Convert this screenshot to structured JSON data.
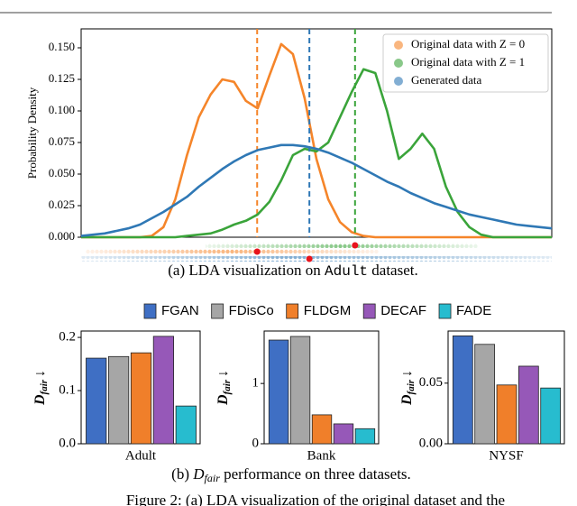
{
  "figure_caption": "Figure 2:  (a) LDA visualization of the original dataset and the",
  "bar_legend": {
    "labels": [
      "FGAN",
      "FDisCo",
      "FLDGM",
      "DECAF",
      "FADE"
    ],
    "colors": [
      "#3f6fc4",
      "#a6a6a6",
      "#f07f2a",
      "#9658b8",
      "#27bccf"
    ]
  },
  "chart_data": [
    {
      "type": "line",
      "caption": [
        "(a) LDA visualization on ",
        "Adult",
        " dataset."
      ],
      "ylabel": "Probability Density",
      "xlim": [
        0,
        100
      ],
      "ylim": [
        0,
        0.165
      ],
      "yticks": [
        {
          "value": 0,
          "label": "0.000"
        },
        {
          "value": 0.025,
          "label": "0.025"
        },
        {
          "value": 0.05,
          "label": "0.050"
        },
        {
          "value": 0.075,
          "label": "0.075"
        },
        {
          "value": 0.1,
          "label": "0.100"
        },
        {
          "value": 0.125,
          "label": "0.125"
        },
        {
          "value": 0.15,
          "label": "0.150"
        }
      ],
      "x": [
        0,
        2.5,
        5,
        7.5,
        10,
        12.5,
        15,
        17.5,
        20,
        22.5,
        25,
        27.5,
        30,
        32.5,
        35,
        37.5,
        40,
        42.5,
        45,
        47.5,
        50,
        52.5,
        55,
        57.5,
        60,
        62.5,
        65,
        67.5,
        70,
        72.5,
        75,
        77.5,
        80,
        82.5,
        85,
        87.5,
        90,
        92.5,
        95,
        97.5,
        100
      ],
      "series": [
        {
          "name": "Original data with Z = 0",
          "color": "#f5852a",
          "mean": 37.4,
          "values": [
            0,
            0,
            0,
            0,
            0,
            0,
            0.001,
            0.008,
            0.03,
            0.065,
            0.095,
            0.113,
            0.125,
            0.123,
            0.108,
            0.102,
            0.128,
            0.153,
            0.145,
            0.11,
            0.062,
            0.03,
            0.012,
            0.004,
            0.001,
            0,
            0,
            0,
            0,
            0,
            0,
            0,
            0,
            0,
            0,
            0,
            0,
            0,
            0,
            0,
            0
          ]
        },
        {
          "name": "Original data with Z = 1",
          "color": "#3aa43a",
          "mean": 58.2,
          "values": [
            0,
            0,
            0,
            0,
            0,
            0,
            0,
            0,
            0,
            0.001,
            0.002,
            0.003,
            0.006,
            0.01,
            0.013,
            0.018,
            0.028,
            0.045,
            0.065,
            0.07,
            0.068,
            0.075,
            0.095,
            0.115,
            0.133,
            0.13,
            0.1,
            0.062,
            0.07,
            0.082,
            0.07,
            0.04,
            0.02,
            0.008,
            0.002,
            0,
            0,
            0,
            0,
            0,
            0
          ]
        },
        {
          "name": "Generated data",
          "color": "#2f78b5",
          "mean": 48.5,
          "values": [
            0.001,
            0.002,
            0.003,
            0.005,
            0.007,
            0.01,
            0.015,
            0.02,
            0.026,
            0.032,
            0.04,
            0.047,
            0.054,
            0.06,
            0.065,
            0.069,
            0.071,
            0.073,
            0.073,
            0.072,
            0.07,
            0.067,
            0.063,
            0.059,
            0.054,
            0.049,
            0.044,
            0.04,
            0.035,
            0.031,
            0.027,
            0.024,
            0.021,
            0.018,
            0.016,
            0.014,
            0.012,
            0.01,
            0.009,
            0.008,
            0.007
          ]
        }
      ],
      "legend": "upper right"
    },
    {
      "type": "bar",
      "xlabel": "Adult",
      "ylabel": [
        "D",
        "fair",
        "↓"
      ],
      "values": [
        0.161,
        0.164,
        0.171,
        0.202,
        0.071
      ],
      "ylim": [
        0,
        0.212
      ],
      "yticks": [
        {
          "value": 0,
          "label": "0.0"
        },
        0.1,
        0.2
      ]
    },
    {
      "type": "bar",
      "xlabel": "Bank",
      "ylabel": [
        "D",
        "fair",
        "↓"
      ],
      "values": [
        1.72,
        1.78,
        0.48,
        0.33,
        0.25
      ],
      "ylim": [
        0,
        1.87
      ],
      "yticks": [
        0,
        1
      ]
    },
    {
      "type": "bar",
      "xlabel": "NYSF",
      "ylabel": [
        "D",
        "fair",
        "↓"
      ],
      "caption": [
        "(b) ",
        "D",
        "fair",
        " performance on three datasets."
      ],
      "values": [
        0.089,
        0.082,
        0.0485,
        0.064,
        0.046
      ],
      "ylim": [
        0,
        0.093
      ],
      "yticks": [
        {
          "value": 0,
          "label": "0.00"
        },
        0.05
      ]
    }
  ]
}
